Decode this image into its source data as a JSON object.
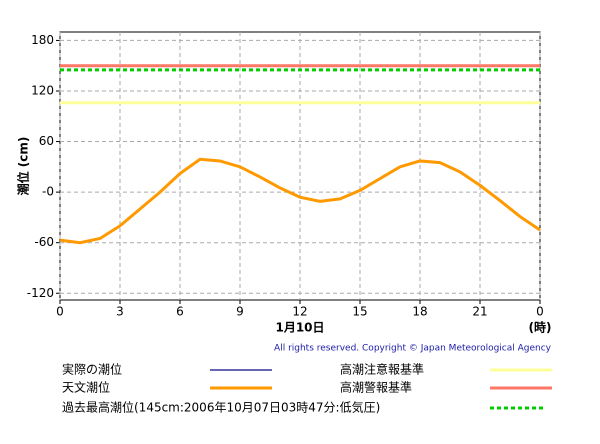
{
  "chart_data": {
    "type": "line",
    "y_label": "潮位 (cm)",
    "x_label": "1月10日",
    "x_unit": "(時)",
    "copyright": "All rights reserved. Copyright © Japan Meteorological Agency",
    "x": [
      0,
      1,
      2,
      3,
      4,
      5,
      6,
      7,
      8,
      9,
      10,
      11,
      12,
      13,
      14,
      15,
      16,
      17,
      18,
      19,
      20,
      21,
      22,
      23,
      24
    ],
    "series": [
      {
        "name": "実際の潮位",
        "color": "#333399",
        "values": [
          null,
          null,
          null,
          null,
          null,
          null,
          null,
          null,
          null,
          null,
          null,
          null,
          null,
          null,
          null,
          null,
          null,
          null,
          null,
          null,
          null,
          null,
          null,
          null,
          null
        ]
      },
      {
        "name": "天文潮位",
        "color": "#ff9900",
        "values": [
          -57,
          -60,
          -55,
          -40,
          -20,
          0,
          22,
          39,
          37,
          30,
          18,
          5,
          -6,
          -11,
          -8,
          2,
          16,
          30,
          37,
          35,
          24,
          8,
          -10,
          -29,
          -45
        ]
      }
    ],
    "reference_lines": [
      {
        "name": "高潮注意報基準",
        "value": 106,
        "color": "#ffff99",
        "dashed": false
      },
      {
        "name": "高潮警報基準",
        "value": 150,
        "color": "#ff7766",
        "dashed": false
      },
      {
        "name": "過去最高潮位(145cm:2006年10月07日03時47分:低気圧)",
        "value": 145,
        "color": "#00cc00",
        "dashed": true
      }
    ],
    "xlim": [
      0,
      24
    ],
    "xticks": [
      0,
      3,
      6,
      9,
      12,
      15,
      18,
      21,
      {
        "value": 24,
        "label": "0"
      }
    ],
    "ylim": [
      -128,
      190
    ],
    "yticks": [
      180,
      120,
      60,
      {
        "value": 0,
        "label": "-0"
      },
      -60,
      -120
    ],
    "grid": true
  }
}
